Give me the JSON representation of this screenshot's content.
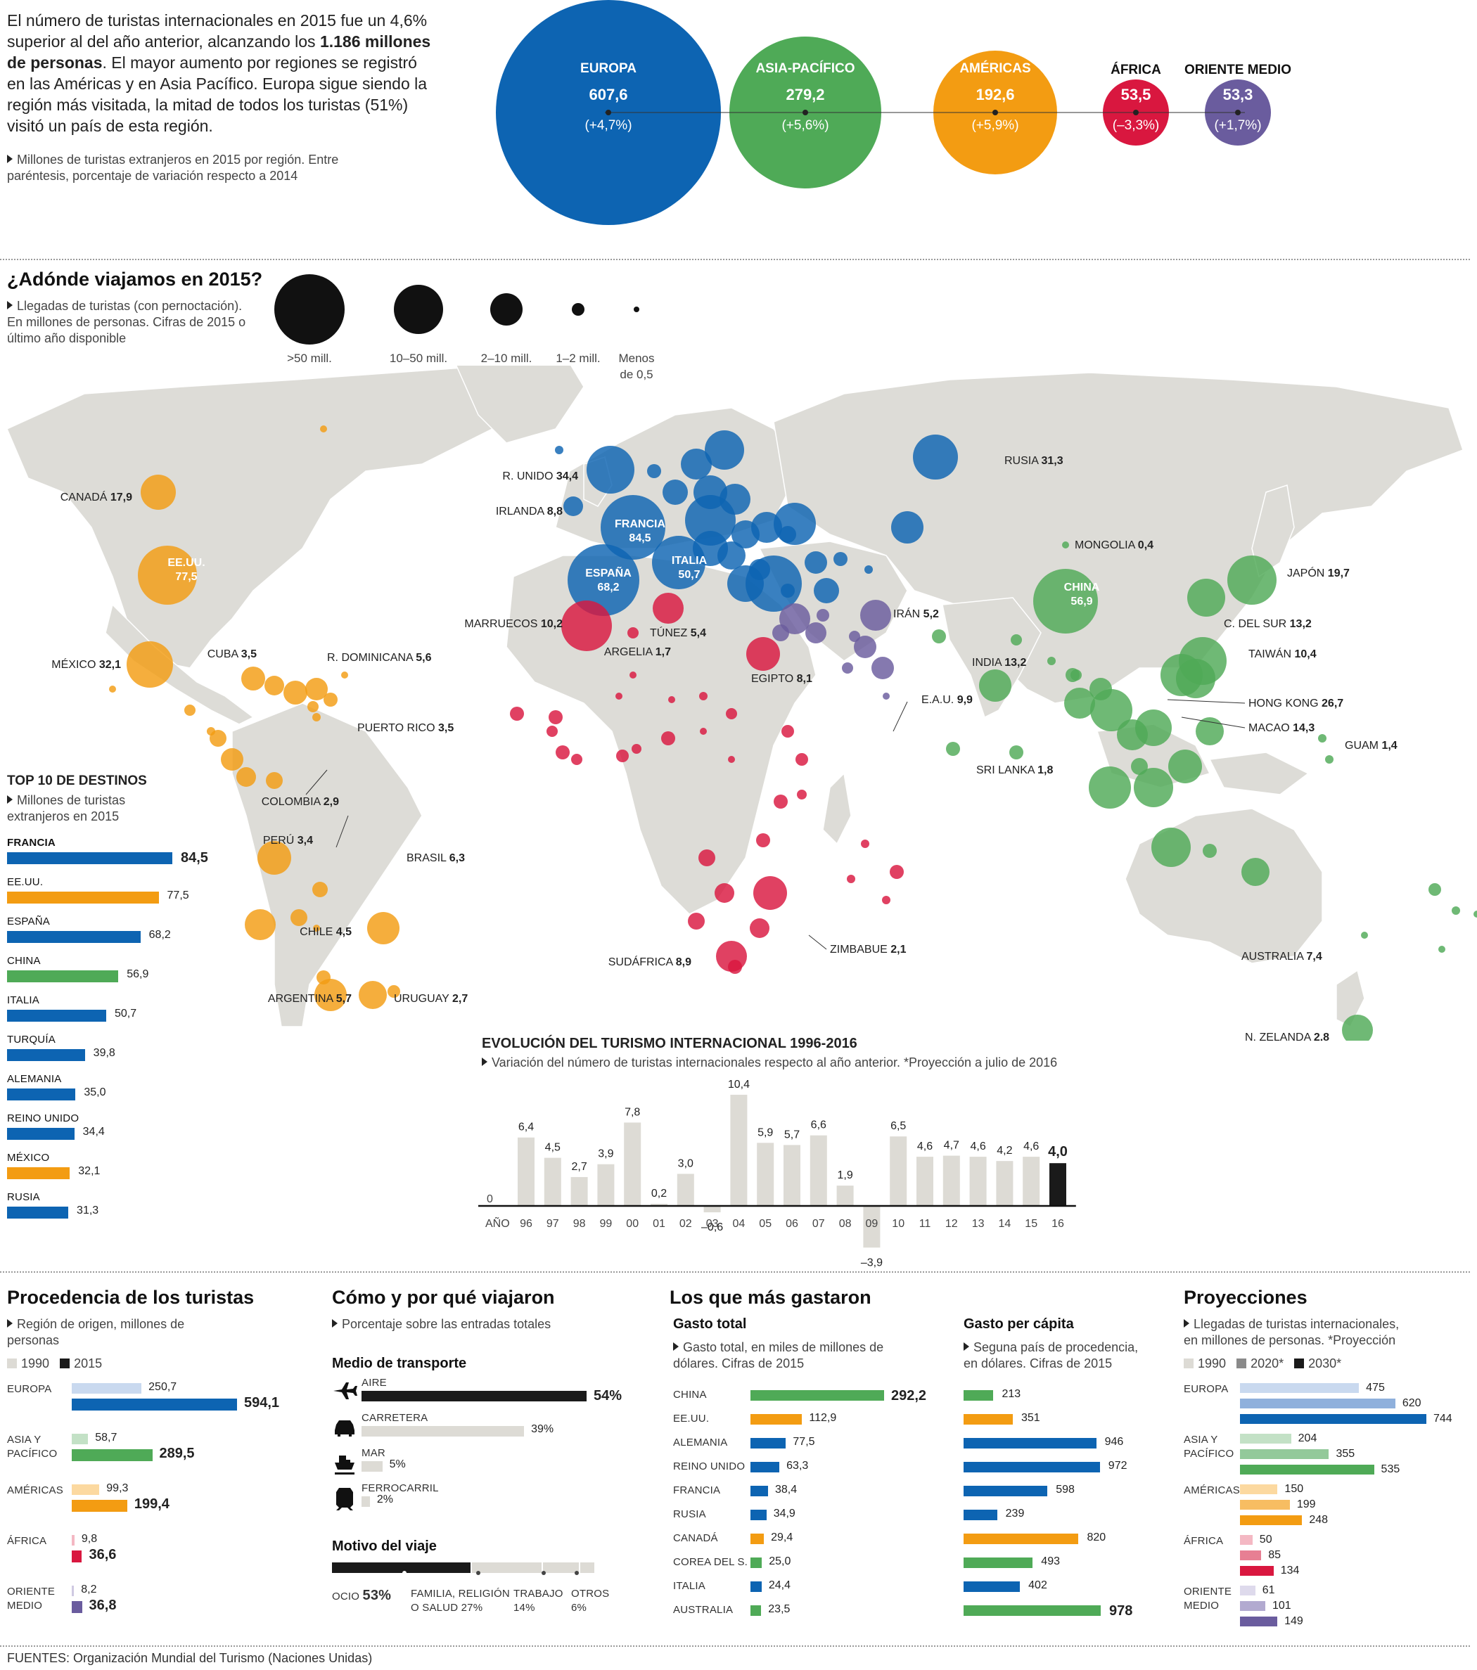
{
  "intro": {
    "text_a": "El número de turistas internacionales en 2015 fue un 4,6% superior al del año anterior, alcanzando los ",
    "text_bold": "1.186 millones de personas",
    "text_b": ". El mayor aumento por regiones se registró en las Américas y en Asia Pacífico. Europa sigue siendo la región más visitada, la mitad de todos los turistas (51%) visitó un país de esta región.",
    "note": "Millones de turistas extranjeros en 2015 por región. Entre paréntesis, porcentaje de variación respecto a 2014"
  },
  "colors": {
    "europa": "#0d64b2",
    "asia": "#4faa57",
    "americas": "#f39c12",
    "africa": "#d9173f",
    "oriente": "#6a5c9e",
    "dark": "#1a1a1a",
    "light": "#dddbd5"
  },
  "regions": [
    {
      "name": "EUROPA",
      "value": "607,6",
      "change": "(+4,7%)"
    },
    {
      "name": "ASIA-PACÍFICO",
      "value": "279,2",
      "change": "(+5,6%)"
    },
    {
      "name": "AMÉRICAS",
      "value": "192,6",
      "change": "(+5,9%)"
    },
    {
      "name": "ÁFRICA",
      "value": "53,5",
      "change": "(–3,3%)"
    },
    {
      "name": "ORIENTE MEDIO",
      "value": "53,3",
      "change": "(+1,7%)"
    }
  ],
  "map": {
    "title": "¿Adónde viajamos en 2015?",
    "note": "Llegadas de turistas (con pernoctación). En millones de personas. Cifras de 2015 o último año disponible",
    "legend": [
      ">50 mill.",
      "10–50 mill.",
      "2–10 mill.",
      "1–2 mill.",
      "Menos de 0,5"
    ],
    "labels": [
      {
        "name": "CANADÁ",
        "value": "17,9"
      },
      {
        "name": "EE.UU.",
        "value": "77,5"
      },
      {
        "name": "MÉXICO",
        "value": "32,1"
      },
      {
        "name": "CUBA",
        "value": "3,5"
      },
      {
        "name": "R. DOMINICANA",
        "value": "5,6"
      },
      {
        "name": "PUERTO RICO",
        "value": "3,5"
      },
      {
        "name": "COLOMBIA",
        "value": "2,9"
      },
      {
        "name": "PERÚ",
        "value": "3,4"
      },
      {
        "name": "BRASIL",
        "value": "6,3"
      },
      {
        "name": "CHILE",
        "value": "4,5"
      },
      {
        "name": "ARGENTINA",
        "value": "5,7"
      },
      {
        "name": "URUGUAY",
        "value": "2,7"
      },
      {
        "name": "R. UNIDO",
        "value": "34,4"
      },
      {
        "name": "IRLANDA",
        "value": "8,8"
      },
      {
        "name": "FRANCIA",
        "value": "84,5"
      },
      {
        "name": "ITALIA",
        "value": "50,7"
      },
      {
        "name": "ESPAÑA",
        "value": "68,2"
      },
      {
        "name": "MARRUECOS",
        "value": "10,2"
      },
      {
        "name": "TÚNEZ",
        "value": "5,4"
      },
      {
        "name": "ARGELIA",
        "value": "1,7"
      },
      {
        "name": "EGIPTO",
        "value": "8,1"
      },
      {
        "name": "ZIMBABUE",
        "value": "2,1"
      },
      {
        "name": "SUDÁFRICA",
        "value": "8,9"
      },
      {
        "name": "RUSIA",
        "value": "31,3"
      },
      {
        "name": "MONGOLIA",
        "value": "0,4"
      },
      {
        "name": "CHINA",
        "value": "56,9"
      },
      {
        "name": "IRÁN",
        "value": "5,2"
      },
      {
        "name": "E.A.U.",
        "value": "9,9"
      },
      {
        "name": "INDIA",
        "value": "13,2"
      },
      {
        "name": "SRI LANKA",
        "value": "1,8"
      },
      {
        "name": "JAPÓN",
        "value": "19,7"
      },
      {
        "name": "C. DEL SUR",
        "value": "13,2"
      },
      {
        "name": "TAIWÁN",
        "value": "10,4"
      },
      {
        "name": "HONG KONG",
        "value": "26,7"
      },
      {
        "name": "MACAO",
        "value": "14,3"
      },
      {
        "name": "GUAM",
        "value": "1,4"
      },
      {
        "name": "AUSTRALIA",
        "value": "7,4"
      },
      {
        "name": "N. ZELANDA",
        "value": "2,8"
      }
    ]
  },
  "top10": {
    "title": "TOP 10 DE DESTINOS",
    "note": "Millones de turistas extranjeros en 2015",
    "items": [
      {
        "name": "FRANCIA",
        "value": 84.5,
        "label": "84,5",
        "region": "europa"
      },
      {
        "name": "EE.UU.",
        "value": 77.5,
        "label": "77,5",
        "region": "americas"
      },
      {
        "name": "ESPAÑA",
        "value": 68.2,
        "label": "68,2",
        "region": "europa"
      },
      {
        "name": "CHINA",
        "value": 56.9,
        "label": "56,9",
        "region": "asia"
      },
      {
        "name": "ITALIA",
        "value": 50.7,
        "label": "50,7",
        "region": "europa"
      },
      {
        "name": "TURQUÍA",
        "value": 39.8,
        "label": "39,8",
        "region": "europa"
      },
      {
        "name": "ALEMANIA",
        "value": 35.0,
        "label": "35,0",
        "region": "europa"
      },
      {
        "name": "REINO UNIDO",
        "value": 34.4,
        "label": "34,4",
        "region": "europa"
      },
      {
        "name": "MÉXICO",
        "value": 32.1,
        "label": "32,1",
        "region": "americas"
      },
      {
        "name": "RUSIA",
        "value": 31.3,
        "label": "31,3",
        "region": "europa"
      }
    ]
  },
  "evolution": {
    "title": "EVOLUCIÓN DEL TURISMO INTERNACIONAL 1996-2016",
    "note": "Variación del número de turistas internacionales respecto al año anterior. *Proyección a julio de 2016",
    "zero_label": "0",
    "axis_label": "AÑO"
  },
  "chart_data": [
    {
      "type": "bar",
      "title": "EVOLUCIÓN DEL TURISMO INTERNACIONAL 1996-2016",
      "categories": [
        "96",
        "97",
        "98",
        "99",
        "00",
        "01",
        "02",
        "03",
        "04",
        "05",
        "06",
        "07",
        "08",
        "09",
        "10",
        "11",
        "12",
        "13",
        "14",
        "15",
        "16"
      ],
      "values": [
        6.4,
        4.5,
        2.7,
        3.9,
        7.8,
        0.2,
        3.0,
        -0.6,
        10.4,
        5.9,
        5.7,
        6.6,
        1.9,
        -3.9,
        6.5,
        4.6,
        4.7,
        4.6,
        4.2,
        4.6,
        4.0
      ],
      "value_labels": [
        "6,4",
        "4,5",
        "2,7",
        "3,9",
        "7,8",
        "0,2",
        "3,0",
        "–0,6",
        "10,4",
        "5,9",
        "5,7",
        "6,6",
        "1,9",
        "–3,9",
        "6,5",
        "4,6",
        "4,7",
        "4,6",
        "4,2",
        "4,6",
        "4,0"
      ],
      "ylim": [
        -4,
        11
      ]
    },
    {
      "type": "bar",
      "title": "Procedencia de los turistas",
      "categories": [
        "EUROPA",
        "ASIA Y PACÍFICO",
        "AMÉRICAS",
        "ÁFRICA",
        "ORIENTE MEDIO"
      ],
      "series": [
        {
          "name": "1990",
          "values": [
            250.7,
            58.7,
            99.3,
            9.8,
            8.2
          ]
        },
        {
          "name": "2015",
          "values": [
            594.1,
            289.5,
            199.4,
            36.6,
            36.8
          ]
        }
      ]
    },
    {
      "type": "bar",
      "title": "Gasto total",
      "categories": [
        "CHINA",
        "EE.UU.",
        "ALEMANIA",
        "REINO UNIDO",
        "FRANCIA",
        "RUSIA",
        "CANADÁ",
        "COREA DEL S.",
        "ITALIA",
        "AUSTRALIA"
      ],
      "values": [
        292.2,
        112.9,
        77.5,
        63.3,
        38.4,
        34.9,
        29.4,
        25.0,
        24.4,
        23.5
      ]
    },
    {
      "type": "bar",
      "title": "Gasto per cápita",
      "categories": [
        "CHINA",
        "EE.UU.",
        "ALEMANIA",
        "REINO UNIDO",
        "FRANCIA",
        "RUSIA",
        "CANADÁ",
        "COREA DEL S.",
        "ITALIA",
        "AUSTRALIA"
      ],
      "values": [
        213,
        351,
        946,
        972,
        598,
        239,
        820,
        493,
        402,
        978
      ]
    },
    {
      "type": "bar",
      "title": "Proyecciones",
      "categories": [
        "EUROPA",
        "ASIA Y PACÍFICO",
        "AMÉRICAS",
        "ÁFRICA",
        "ORIENTE MEDIO"
      ],
      "series": [
        {
          "name": "1990",
          "values": [
            475,
            204,
            150,
            50,
            61
          ]
        },
        {
          "name": "2020*",
          "values": [
            620,
            355,
            199,
            85,
            101
          ]
        },
        {
          "name": "2030*",
          "values": [
            744,
            535,
            248,
            134,
            149
          ]
        }
      ]
    }
  ],
  "origin": {
    "title": "Procedencia de los turistas",
    "note": "Región de origen, millones de personas",
    "legend": [
      "1990",
      "2015"
    ],
    "rows": [
      {
        "name_a": "EUROPA",
        "name_b": "",
        "region": "europa",
        "v1990": 250.7,
        "l1990": "250,7",
        "v2015": 594.1,
        "l2015": "594,1"
      },
      {
        "name_a": "ASIA Y",
        "name_b": "PACÍFICO",
        "region": "asia",
        "v1990": 58.7,
        "l1990": "58,7",
        "v2015": 289.5,
        "l2015": "289,5"
      },
      {
        "name_a": "AMÉRICAS",
        "name_b": "",
        "region": "americas",
        "v1990": 99.3,
        "l1990": "99,3",
        "v2015": 199.4,
        "l2015": "199,4"
      },
      {
        "name_a": "ÁFRICA",
        "name_b": "",
        "region": "africa",
        "v1990": 9.8,
        "l1990": "9,8",
        "v2015": 36.6,
        "l2015": "36,6"
      },
      {
        "name_a": "ORIENTE",
        "name_b": "MEDIO",
        "region": "oriente",
        "v1990": 8.2,
        "l1990": "8,2",
        "v2015": 36.8,
        "l2015": "36,8"
      }
    ]
  },
  "how": {
    "title": "Cómo y por qué viajaron",
    "note": "Porcentaje sobre las entradas totales",
    "transport_title": "Medio de transporte",
    "transport": [
      {
        "name": "AIRE",
        "value": 54,
        "label": "54%",
        "icon": "plane-icon",
        "dark": true
      },
      {
        "name": "CARRETERA",
        "value": 39,
        "label": "39%",
        "icon": "car-icon",
        "dark": false
      },
      {
        "name": "MAR",
        "value": 5,
        "label": "5%",
        "icon": "ship-icon",
        "dark": false
      },
      {
        "name": "FERROCARRIL",
        "value": 2,
        "label": "2%",
        "icon": "train-icon",
        "dark": false
      }
    ],
    "motive_title": "Motivo del viaje",
    "motives": [
      {
        "line1": "OCIO",
        "value": 53,
        "label": "53%"
      },
      {
        "line1": "FAMILIA, RELIGIÓN",
        "line2": "O SALUD",
        "value": 27,
        "label": "27%"
      },
      {
        "line1": "TRABAJO",
        "value": 14,
        "label": "14%"
      },
      {
        "line1": "OTROS",
        "value": 6,
        "label": "6%"
      }
    ]
  },
  "spend": {
    "title": "Los que más gastaron",
    "total_title": "Gasto total",
    "total_note": "Gasto total, en miles de millones de dólares. Cifras de 2015",
    "percap_title": "Gasto per cápita",
    "percap_note": "Seguna país de procedencia, en dólares. Cifras de 2015",
    "rows": [
      {
        "name": "CHINA",
        "region": "asia",
        "total": 292.2,
        "tl": "292,2",
        "pc": 213,
        "pl": "213"
      },
      {
        "name": "EE.UU.",
        "region": "americas",
        "total": 112.9,
        "tl": "112,9",
        "pc": 351,
        "pl": "351"
      },
      {
        "name": "ALEMANIA",
        "region": "europa",
        "total": 77.5,
        "tl": "77,5",
        "pc": 946,
        "pl": "946"
      },
      {
        "name": "REINO UNIDO",
        "region": "europa",
        "total": 63.3,
        "tl": "63,3",
        "pc": 972,
        "pl": "972"
      },
      {
        "name": "FRANCIA",
        "region": "europa",
        "total": 38.4,
        "tl": "38,4",
        "pc": 598,
        "pl": "598"
      },
      {
        "name": "RUSIA",
        "region": "europa",
        "total": 34.9,
        "tl": "34,9",
        "pc": 239,
        "pl": "239"
      },
      {
        "name": "CANADÁ",
        "region": "americas",
        "total": 29.4,
        "tl": "29,4",
        "pc": 820,
        "pl": "820"
      },
      {
        "name": "COREA DEL S.",
        "region": "asia",
        "total": 25.0,
        "tl": "25,0",
        "pc": 493,
        "pl": "493"
      },
      {
        "name": "ITALIA",
        "region": "europa",
        "total": 24.4,
        "tl": "24,4",
        "pc": 402,
        "pl": "402"
      },
      {
        "name": "AUSTRALIA",
        "region": "asia",
        "total": 23.5,
        "tl": "23,5",
        "pc": 978,
        "pl": "978"
      }
    ]
  },
  "proj": {
    "title": "Proyecciones",
    "note": "Llegadas de turistas internacionales, en millones de personas. *Proyección",
    "legend": [
      "1990",
      "2020*",
      "2030*"
    ],
    "rows": [
      {
        "name_a": "EUROPA",
        "name_b": "",
        "region": "europa",
        "v": [
          475,
          620,
          744
        ],
        "l": [
          "475",
          "620",
          "744"
        ]
      },
      {
        "name_a": "ASIA Y",
        "name_b": "PACÍFICO",
        "region": "asia",
        "v": [
          204,
          355,
          535
        ],
        "l": [
          "204",
          "355",
          "535"
        ]
      },
      {
        "name_a": "AMÉRICAS",
        "name_b": "",
        "region": "americas",
        "v": [
          150,
          199,
          248
        ],
        "l": [
          "150",
          "199",
          "248"
        ]
      },
      {
        "name_a": "ÁFRICA",
        "name_b": "",
        "region": "africa",
        "v": [
          50,
          85,
          134
        ],
        "l": [
          "50",
          "85",
          "134"
        ]
      },
      {
        "name_a": "ORIENTE",
        "name_b": "MEDIO",
        "region": "oriente",
        "v": [
          61,
          101,
          149
        ],
        "l": [
          "61",
          "101",
          "149"
        ]
      }
    ]
  },
  "footer": "FUENTES: Organización Mundial del Turismo (Naciones Unidas)"
}
